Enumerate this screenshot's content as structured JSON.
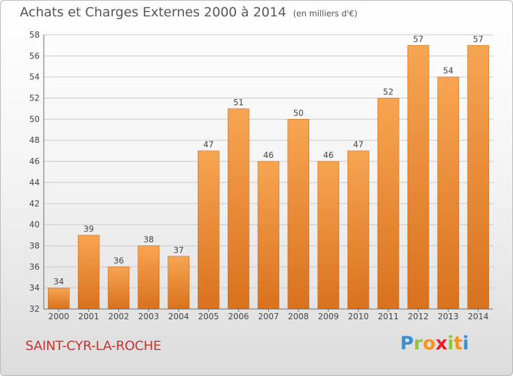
{
  "title": "Achats et Charges Externes 2000 à 2014",
  "unit": "(en milliers d'€)",
  "commune": "SAINT-CYR-LA-ROCHE",
  "logo": {
    "letters": [
      "P",
      "r",
      "o",
      "x",
      "i",
      "t",
      "i"
    ],
    "colors": [
      "#3a8fd0",
      "#8cc63f",
      "#f7941d",
      "#ed1c24",
      "#8cc63f",
      "#f7941d",
      "#3a8fd0"
    ]
  },
  "colors": {
    "bar_top": "#f7a552",
    "bar_bottom": "#d9711e",
    "grid": "#c8c8c8",
    "text": "#444444",
    "commune": "#c8342c"
  },
  "chart_data": {
    "type": "bar",
    "categories": [
      "2000",
      "2001",
      "2002",
      "2003",
      "2004",
      "2005",
      "2006",
      "2007",
      "2008",
      "2009",
      "2010",
      "2011",
      "2012",
      "2013",
      "2014"
    ],
    "values": [
      34,
      39,
      36,
      38,
      37,
      47,
      51,
      46,
      50,
      46,
      47,
      52,
      57,
      54,
      57
    ],
    "ylim": [
      32,
      58
    ],
    "yticks": [
      32,
      34,
      36,
      38,
      40,
      42,
      44,
      46,
      48,
      50,
      52,
      54,
      56,
      58
    ],
    "grid": true,
    "data_labels": true
  }
}
